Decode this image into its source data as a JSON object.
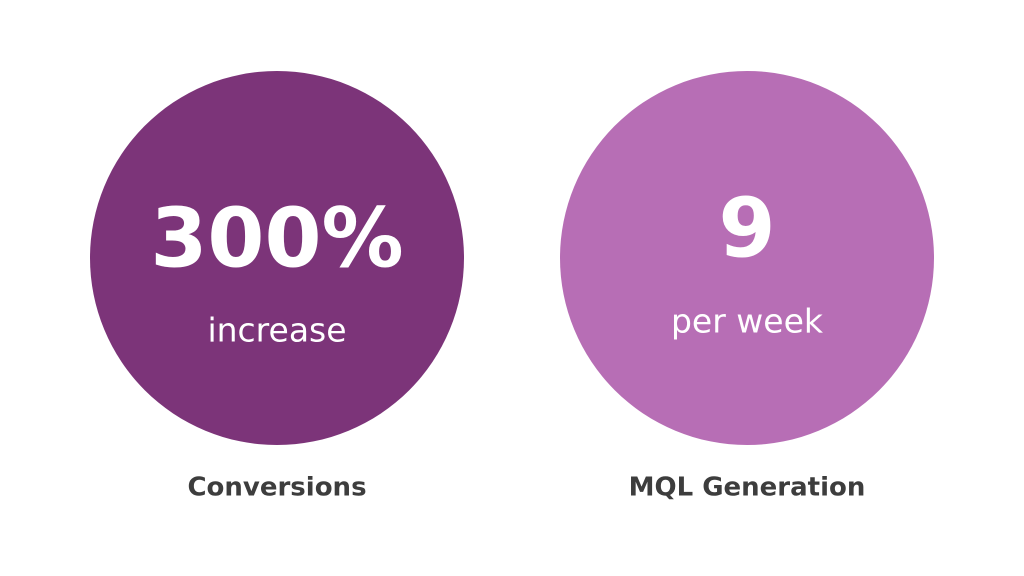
{
  "stats": [
    {
      "value": "300%",
      "caption": "increase",
      "label": "Conversions"
    },
    {
      "value": "9",
      "caption": "per week",
      "label": "MQL Generation"
    }
  ]
}
